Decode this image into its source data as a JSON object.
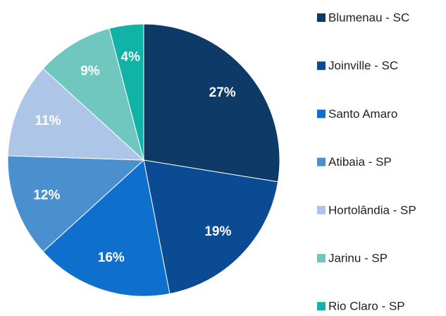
{
  "chart_data": {
    "type": "pie",
    "categories": [
      "Blumenau - SC",
      "Joinville - SC",
      "Santo Amaro",
      "Atibaia - SP",
      "Hortolândia - SP",
      "Jarinu - SP",
      "Rio Claro - SP"
    ],
    "values": [
      27,
      19,
      16,
      12,
      11,
      9,
      4
    ],
    "value_labels": [
      "27%",
      "19%",
      "16%",
      "12%",
      "11%",
      "9%",
      "4%"
    ],
    "colors": [
      "#0d3a66",
      "#0a4b94",
      "#0f6fcc",
      "#4a90cf",
      "#adc6e8",
      "#6fc7bf",
      "#10b3a6"
    ],
    "legend": "right"
  }
}
